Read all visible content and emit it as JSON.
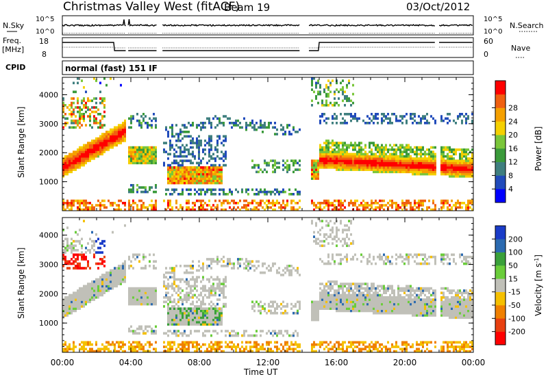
{
  "title": {
    "station": "Christmas Valley West (fitACF)",
    "beam": "Beam 19",
    "date": "03/Oct/2012"
  },
  "header_panels": {
    "nsky_label": "N.Sky",
    "nsky_ticks": [
      "10^5",
      "10^0"
    ],
    "nsearch_label": "N.Search",
    "nsearch_ticks": [
      "10^5",
      "10^0"
    ],
    "freq_label_1": "Freq.",
    "freq_label_2": "[MHz]",
    "freq_ticks": [
      "18",
      "8"
    ],
    "nave_label": "Nave",
    "nave_ticks": [
      "60",
      "0"
    ],
    "cpid_label": "CPID",
    "cpid_text": "normal (fast) 151 IF"
  },
  "chart_data": [
    {
      "type": "heatmap",
      "name": "power-panel",
      "xlabel": "Time UT",
      "ylabel": "Slant Range [km]",
      "xlim": [
        "00:00",
        "24:00"
      ],
      "ylim": [
        0,
        4600
      ],
      "x_ticks": [
        "00:00",
        "04:00",
        "08:00",
        "12:00",
        "16:00",
        "20:00",
        "00:00"
      ],
      "y_ticks": [
        "1000",
        "2000",
        "3000",
        "4000"
      ],
      "colorbar": {
        "label": "Power [dB]",
        "ticks": [
          "4",
          "8",
          "12",
          "16",
          "20",
          "24",
          "28"
        ],
        "range": [
          0,
          30
        ]
      },
      "data_gaps_ut_hours": [
        [
          3.7,
          3.8
        ],
        [
          5.5,
          5.8
        ],
        [
          13.9,
          14.4
        ],
        [
          21.8,
          22.0
        ]
      ]
    },
    {
      "type": "heatmap",
      "name": "velocity-panel",
      "xlabel": "Time UT",
      "ylabel": "Slant Range [km]",
      "xlim": [
        "00:00",
        "24:00"
      ],
      "ylim": [
        0,
        4600
      ],
      "x_ticks": [
        "00:00",
        "04:00",
        "08:00",
        "12:00",
        "16:00",
        "20:00",
        "00:00"
      ],
      "y_ticks": [
        "1000",
        "2000",
        "3000",
        "4000"
      ],
      "colorbar": {
        "label": "Velocity [m s-1]",
        "ticks": [
          "200",
          "100",
          "50",
          "15",
          "-15",
          "-50",
          "-100",
          "-200"
        ]
      },
      "data_gaps_ut_hours": [
        [
          3.7,
          3.8
        ],
        [
          5.5,
          5.8
        ],
        [
          13.9,
          14.4
        ],
        [
          21.8,
          22.0
        ]
      ]
    }
  ],
  "axis_labels": {
    "x_ticks": [
      "00:00",
      "04:00",
      "08:00",
      "12:00",
      "16:00",
      "20:00",
      "00:00"
    ],
    "y_ticks": [
      "1000",
      "2000",
      "3000",
      "4000"
    ],
    "xlabel": "Time UT",
    "ylabel": "Slant Range [km]"
  },
  "colorbars": {
    "power_label": "Power [dB]",
    "power_ticks": [
      "4",
      "8",
      "12",
      "16",
      "20",
      "24",
      "28"
    ],
    "power_colors": [
      "#0000ff",
      "#214bbb",
      "#3f7f7f",
      "#3a9a3a",
      "#7ac63a",
      "#f5d000",
      "#f5a000",
      "#f06010",
      "#ff0000"
    ],
    "velocity_label": "Velocity [m s",
    "velocity_label_sup": "-1",
    "velocity_label_end": "]",
    "velocity_ticks": [
      "200",
      "100",
      "50",
      "15",
      "-15",
      "-50",
      "-100",
      "-200"
    ],
    "velocity_colors": [
      "#1a3cc8",
      "#2b6ab0",
      "#3aa03a",
      "#6acd3a",
      "#c0c0b8",
      "#f5c000",
      "#f08000",
      "#e84010",
      "#ff0000"
    ]
  }
}
